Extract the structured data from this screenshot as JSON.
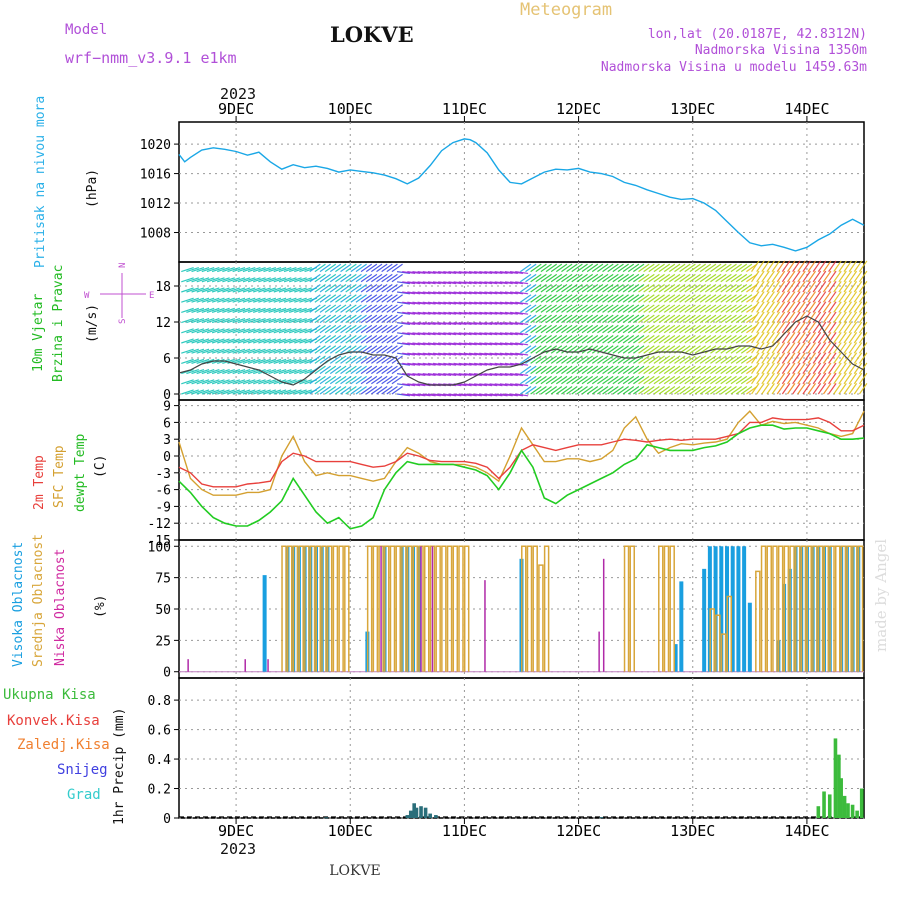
{
  "header": {
    "model_label": "Model",
    "model_name": "wrf−nmm_v3.9.1  e1km",
    "station": "LOKVE",
    "meteogram": "Meteogram",
    "lonlat": "lon,lat (20.0187E, 42.8312N)",
    "elevation": "Nadmorska Visina 1350m",
    "model_elevation": "Nadmorska Visina u modelu 1459.63m",
    "year_top": "2023",
    "year_bottom": "2023",
    "footer_station": "LOKVE",
    "watermark": "made by Angel"
  },
  "colors": {
    "pressure": "#1aa7e6",
    "temp2m": "#e8403c",
    "sfc": "#d4a030",
    "dewpt": "#22cc22",
    "high_cloud": "#199fe0",
    "mid_cloud": "#d8a63a",
    "low_cloud": "#b02aa8",
    "precip_total": "#3cbb3c",
    "precip_conv": "#e8403c",
    "precip_frozen": "#f08030",
    "snow": "#4040e0",
    "graupel": "#33cccc"
  },
  "chart_data": [
    {
      "type": "line",
      "panel": "pressure",
      "ylabel": [
        "Pritisak na nivou mora",
        "(hPa)"
      ],
      "ylim": [
        1004,
        1023
      ],
      "yticks": [
        1008,
        1012,
        1016,
        1020
      ],
      "xlim": [
        8.5,
        14.5
      ],
      "x_day_ticks": [
        9,
        10,
        11,
        12,
        13,
        14
      ],
      "x_tick_labels": [
        "9DEC",
        "10DEC",
        "11DEC",
        "12DEC",
        "13DEC",
        "14DEC"
      ],
      "grid": true,
      "series": [
        {
          "values_x": [
            8.5,
            8.55,
            8.6,
            8.7,
            8.8,
            8.9,
            9.0,
            9.1,
            9.2,
            9.3,
            9.4,
            9.5,
            9.6,
            9.7,
            9.8,
            9.9,
            10.0,
            10.1,
            10.2,
            10.3,
            10.4,
            10.5,
            10.6,
            10.7,
            10.8,
            10.9,
            11.0,
            11.05,
            11.1,
            11.2,
            11.3,
            11.4,
            11.5,
            11.6,
            11.7,
            11.8,
            11.9,
            12.0,
            12.1,
            12.2,
            12.3,
            12.4,
            12.5,
            12.6,
            12.7,
            12.8,
            12.9,
            13.0,
            13.1,
            13.2,
            13.3,
            13.4,
            13.5,
            13.6,
            13.7,
            13.8,
            13.9,
            14.0,
            14.1,
            14.2,
            14.3,
            14.4,
            14.5
          ],
          "values_y": [
            1018.6,
            1017.6,
            1018.2,
            1019.2,
            1019.5,
            1019.3,
            1019.0,
            1018.5,
            1018.9,
            1017.6,
            1016.6,
            1017.2,
            1016.8,
            1017.0,
            1016.7,
            1016.2,
            1016.5,
            1016.3,
            1016.1,
            1015.8,
            1015.3,
            1014.6,
            1015.4,
            1017.1,
            1019.1,
            1020.2,
            1020.7,
            1020.6,
            1020.2,
            1018.8,
            1016.5,
            1014.8,
            1014.6,
            1015.4,
            1016.2,
            1016.6,
            1016.5,
            1016.7,
            1016.2,
            1016.0,
            1015.6,
            1014.8,
            1014.4,
            1013.8,
            1013.3,
            1012.8,
            1012.5,
            1012.6,
            1012.0,
            1011.0,
            1009.5,
            1008.0,
            1006.6,
            1006.2,
            1006.4,
            1006.0,
            1005.5,
            1006.0,
            1007.0,
            1007.8,
            1009.0,
            1009.8,
            1009.0
          ]
        }
      ]
    },
    {
      "type": "line",
      "panel": "wind",
      "ylabel": [
        "10m Vjetar",
        "Brzina i Pravac",
        "(m/s)"
      ],
      "ylim": [
        -1,
        22
      ],
      "yticks": [
        0,
        6,
        12,
        18
      ],
      "direction_legend": [
        "N",
        "E",
        "S",
        "W"
      ],
      "series": [
        {
          "name": "speed",
          "values_x": [
            8.5,
            8.6,
            8.7,
            8.8,
            8.9,
            9.0,
            9.1,
            9.2,
            9.3,
            9.4,
            9.5,
            9.6,
            9.7,
            9.8,
            9.9,
            10.0,
            10.1,
            10.2,
            10.3,
            10.4,
            10.5,
            10.6,
            10.7,
            10.8,
            10.9,
            11.0,
            11.1,
            11.2,
            11.3,
            11.4,
            11.5,
            11.6,
            11.7,
            11.8,
            11.9,
            12.0,
            12.1,
            12.2,
            12.3,
            12.4,
            12.5,
            12.6,
            12.7,
            12.8,
            12.9,
            13.0,
            13.1,
            13.2,
            13.3,
            13.4,
            13.5,
            13.6,
            13.7,
            13.8,
            13.9,
            14.0,
            14.1,
            14.2,
            14.3,
            14.4,
            14.5
          ],
          "values_y": [
            3.5,
            4,
            5,
            5.5,
            5.5,
            5,
            4.5,
            4,
            3,
            2,
            1.5,
            2.5,
            4,
            5.5,
            6.5,
            7,
            7,
            6.5,
            6.5,
            6,
            3,
            2,
            1.5,
            1.5,
            1.5,
            2,
            3,
            4,
            4.5,
            4.5,
            5,
            6,
            7,
            7.5,
            7,
            7,
            7.5,
            7,
            6.5,
            6,
            6,
            6.5,
            7,
            7,
            7,
            6.5,
            7,
            7.5,
            7.5,
            8,
            8,
            7.5,
            8,
            10,
            12,
            13,
            12,
            9,
            7,
            5,
            4
          ]
        }
      ]
    },
    {
      "type": "line",
      "panel": "temperature",
      "ylabel": [
        "2m Temp",
        "SFC Temp",
        "dewpt Temp",
        "(C)"
      ],
      "ylim": [
        -15,
        10
      ],
      "yticks": [
        -15,
        -12,
        -9,
        -6,
        -3,
        0,
        3,
        6,
        9
      ],
      "series": [
        {
          "name": "2m Temp",
          "values_x": [
            8.5,
            8.6,
            8.7,
            8.8,
            8.9,
            9.0,
            9.1,
            9.2,
            9.3,
            9.4,
            9.5,
            9.6,
            9.7,
            9.8,
            9.9,
            10.0,
            10.1,
            10.2,
            10.3,
            10.4,
            10.5,
            10.6,
            10.7,
            10.8,
            10.9,
            11.0,
            11.1,
            11.2,
            11.3,
            11.4,
            11.5,
            11.6,
            11.7,
            11.8,
            11.9,
            12.0,
            12.1,
            12.2,
            12.3,
            12.4,
            12.5,
            12.6,
            12.7,
            12.8,
            12.9,
            13.0,
            13.1,
            13.2,
            13.3,
            13.4,
            13.5,
            13.6,
            13.7,
            13.8,
            13.9,
            14.0,
            14.1,
            14.2,
            14.3,
            14.4,
            14.5
          ],
          "values_y": [
            -2,
            -3,
            -5,
            -5.5,
            -5.5,
            -5.5,
            -5,
            -4.8,
            -4.5,
            -1,
            0.5,
            0,
            -1,
            -1,
            -1,
            -1,
            -1.5,
            -2,
            -1.8,
            -1,
            0.5,
            0,
            -0.8,
            -1,
            -1,
            -1,
            -1.3,
            -2,
            -4,
            -2,
            1,
            2,
            1.5,
            1,
            1.5,
            2,
            2,
            2,
            2.5,
            3,
            2.8,
            2.5,
            2.8,
            3,
            2.8,
            3,
            3,
            3,
            3.5,
            4,
            6,
            6,
            6.8,
            6.5,
            6.5,
            6.5,
            6.8,
            6,
            4.5,
            4.5,
            5.5
          ]
        },
        {
          "name": "SFC Temp",
          "values_x": [
            8.5,
            8.6,
            8.7,
            8.8,
            8.9,
            9.0,
            9.1,
            9.2,
            9.3,
            9.4,
            9.5,
            9.6,
            9.7,
            9.8,
            9.9,
            10.0,
            10.1,
            10.2,
            10.3,
            10.4,
            10.5,
            10.6,
            10.7,
            10.8,
            10.9,
            11.0,
            11.1,
            11.2,
            11.3,
            11.4,
            11.5,
            11.6,
            11.7,
            11.8,
            11.9,
            12.0,
            12.1,
            12.2,
            12.3,
            12.4,
            12.5,
            12.6,
            12.7,
            12.8,
            12.9,
            13.0,
            13.1,
            13.2,
            13.3,
            13.4,
            13.5,
            13.6,
            13.7,
            13.8,
            13.9,
            14.0,
            14.1,
            14.2,
            14.3,
            14.4,
            14.5
          ],
          "values_y": [
            2.5,
            -4,
            -6,
            -7,
            -7,
            -7,
            -6.5,
            -6.5,
            -6,
            0,
            3.5,
            -1,
            -3.5,
            -3,
            -3.5,
            -3.5,
            -4,
            -4.5,
            -4,
            -1,
            1.5,
            0.5,
            -1,
            -1.5,
            -1.5,
            -1.5,
            -2,
            -3,
            -4.5,
            0,
            5,
            2,
            -1,
            -1,
            -0.5,
            -0.5,
            -1,
            -0.5,
            1,
            5,
            7,
            3,
            0.5,
            1.5,
            2.2,
            2,
            2.3,
            2.5,
            3,
            6,
            8,
            5.5,
            6.2,
            5.8,
            6,
            5.5,
            5,
            4,
            3.5,
            4,
            8
          ]
        },
        {
          "name": "dewpt Temp",
          "values_x": [
            8.5,
            8.6,
            8.7,
            8.8,
            8.9,
            9.0,
            9.1,
            9.2,
            9.3,
            9.4,
            9.5,
            9.6,
            9.7,
            9.8,
            9.9,
            10.0,
            10.1,
            10.2,
            10.3,
            10.4,
            10.5,
            10.6,
            10.7,
            10.8,
            10.9,
            11.0,
            11.1,
            11.2,
            11.3,
            11.4,
            11.5,
            11.6,
            11.7,
            11.8,
            11.9,
            12.0,
            12.1,
            12.2,
            12.3,
            12.4,
            12.5,
            12.6,
            12.7,
            12.8,
            12.9,
            13.0,
            13.1,
            13.2,
            13.3,
            13.4,
            13.5,
            13.6,
            13.7,
            13.8,
            13.9,
            14.0,
            14.1,
            14.2,
            14.3,
            14.4,
            14.5
          ],
          "values_y": [
            -4.5,
            -6.5,
            -9,
            -11,
            -12,
            -12.5,
            -12.5,
            -11.5,
            -10,
            -8,
            -4,
            -7,
            -10,
            -12,
            -11,
            -13,
            -12.5,
            -11,
            -6,
            -3,
            -1,
            -1.5,
            -1.5,
            -1.5,
            -1.5,
            -2,
            -2.5,
            -3.5,
            -6,
            -3,
            1,
            -2,
            -7.5,
            -8.5,
            -7,
            -6,
            -5,
            -4,
            -3,
            -1.5,
            -0.5,
            2,
            1.5,
            1,
            1,
            1,
            1.5,
            1.8,
            2.5,
            4,
            5,
            5.5,
            5.5,
            4.8,
            5,
            5,
            4.5,
            4,
            3,
            3,
            3.2
          ]
        }
      ]
    },
    {
      "type": "bar",
      "panel": "clouds",
      "ylabel": [
        "Visoka Oblacnost",
        "Srednja Oblacnost",
        "Niska Oblacnost",
        "(%)"
      ],
      "ylim": [
        -5,
        105
      ],
      "yticks": [
        0,
        25,
        50,
        75,
        100
      ],
      "series": [
        {
          "name": "Visoka Oblacnost",
          "x": [
            9.25,
            9.45,
            9.5,
            9.55,
            9.6,
            9.65,
            9.7,
            9.75,
            9.8,
            10.15,
            10.3,
            10.45,
            10.5,
            10.55,
            10.6,
            11.5,
            12.85,
            12.9,
            13.1,
            13.15,
            13.2,
            13.25,
            13.3,
            13.35,
            13.4,
            13.45,
            13.5,
            13.75,
            13.8,
            13.85,
            13.9,
            13.95,
            14.0,
            14.05,
            14.1,
            14.15,
            14.2,
            14.3,
            14.35,
            14.4,
            14.45
          ],
          "values": [
            77,
            100,
            100,
            100,
            100,
            100,
            100,
            100,
            100,
            32,
            100,
            100,
            100,
            100,
            100,
            90,
            22,
            72,
            82,
            100,
            100,
            100,
            100,
            100,
            100,
            100,
            55,
            25,
            70,
            82,
            100,
            100,
            100,
            100,
            100,
            100,
            100,
            100,
            100,
            100,
            100
          ]
        },
        {
          "name": "Srednja Oblacnost",
          "x": [
            9.42,
            9.47,
            9.52,
            9.57,
            9.62,
            9.67,
            9.72,
            9.77,
            9.82,
            9.87,
            9.92,
            9.97,
            10.17,
            10.22,
            10.27,
            10.32,
            10.37,
            10.42,
            10.47,
            10.52,
            10.57,
            10.62,
            10.67,
            10.72,
            10.77,
            10.82,
            10.87,
            10.92,
            10.97,
            11.02,
            11.52,
            11.57,
            11.62,
            11.67,
            11.72,
            12.42,
            12.47,
            12.72,
            12.77,
            12.82,
            13.17,
            13.22,
            13.27,
            13.32,
            13.57,
            13.62,
            13.67,
            13.72,
            13.77,
            13.82,
            13.87,
            13.92,
            13.97,
            14.02,
            14.07,
            14.12,
            14.17,
            14.22,
            14.27,
            14.32,
            14.37,
            14.42,
            14.47
          ],
          "values": [
            100,
            100,
            100,
            100,
            100,
            100,
            100,
            100,
            100,
            100,
            100,
            100,
            100,
            100,
            100,
            100,
            100,
            100,
            100,
            100,
            100,
            100,
            100,
            100,
            100,
            100,
            100,
            100,
            100,
            100,
            100,
            100,
            100,
            85,
            100,
            100,
            100,
            100,
            100,
            100,
            50,
            45,
            30,
            60,
            80,
            100,
            100,
            100,
            100,
            100,
            100,
            100,
            100,
            100,
            100,
            100,
            100,
            100,
            100,
            100,
            100,
            100,
            100
          ]
        },
        {
          "name": "Niska Oblacnost",
          "x": [
            8.58,
            9.08,
            9.28,
            10.27,
            10.62,
            10.72,
            11.18,
            12.18,
            12.22
          ],
          "values": [
            10,
            10,
            10,
            100,
            100,
            100,
            73,
            32,
            90
          ]
        }
      ]
    },
    {
      "type": "bar",
      "panel": "precipitation",
      "ylabel": [
        "1hr Precip (mm)"
      ],
      "legend": [
        "Ukupna  Kisa",
        "Konvek.Kisa",
        "Zaledj.Kisa",
        "Snijeg",
        "Grad"
      ],
      "ylim": [
        0,
        0.95
      ],
      "yticks": [
        0,
        0.2,
        0.4,
        0.6,
        0.8
      ],
      "series": [
        {
          "name": "Snijeg",
          "x": [
            9.79,
            10.5,
            10.53,
            10.56,
            10.58,
            10.62,
            10.66,
            10.7,
            10.75,
            12.2
          ],
          "values": [
            0.005,
            0.02,
            0.05,
            0.1,
            0.07,
            0.08,
            0.07,
            0.03,
            0.02,
            0.006
          ]
        },
        {
          "name": "Ukupna  Kisa",
          "x": [
            14.1,
            14.15,
            14.2,
            14.25,
            14.28,
            14.3,
            14.33,
            14.36,
            14.4,
            14.44,
            14.48
          ],
          "values": [
            0.08,
            0.18,
            0.16,
            0.54,
            0.43,
            0.27,
            0.15,
            0.1,
            0.09,
            0.05,
            0.2
          ]
        }
      ]
    }
  ]
}
